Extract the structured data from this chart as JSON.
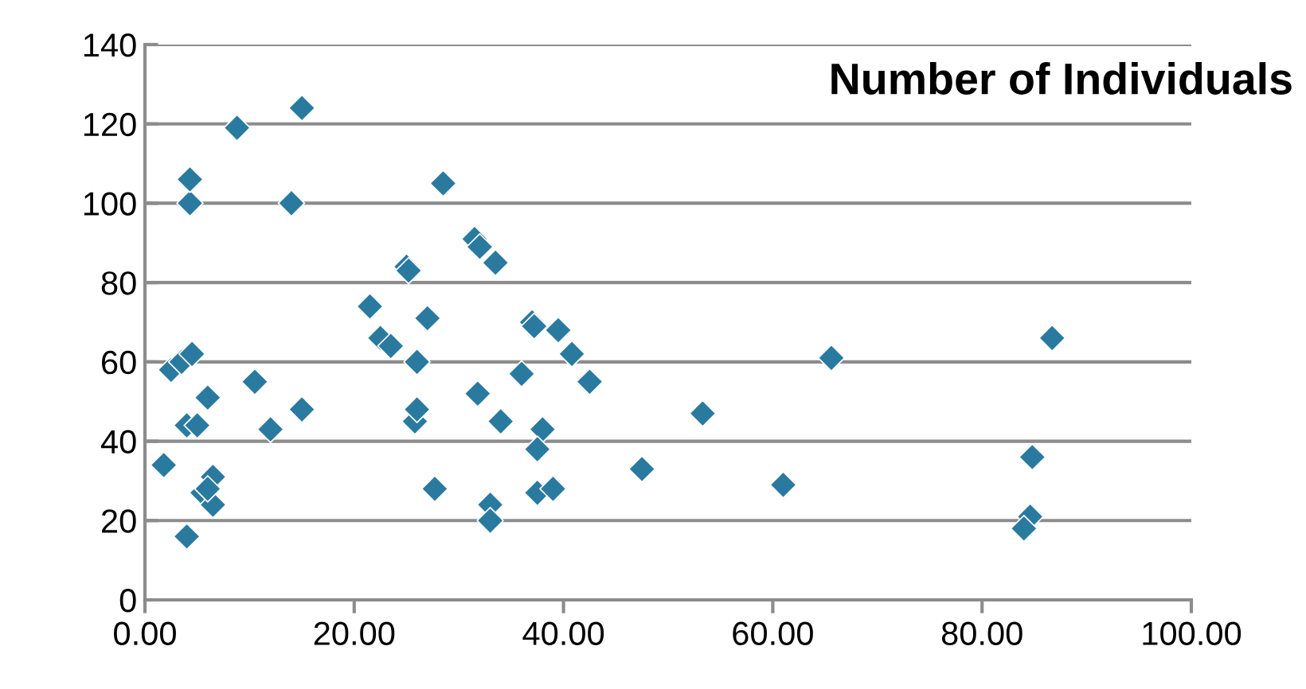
{
  "chart_data": {
    "type": "scatter",
    "title": "Number of Individuals",
    "x": [
      1.8,
      2.5,
      3.5,
      4.5,
      4,
      5,
      4,
      4.3,
      4.3,
      5.5,
      6.5,
      6,
      6.5,
      6,
      8.8,
      10.5,
      12,
      14,
      15,
      15,
      21.5,
      22.5,
      23.5,
      25,
      25.2,
      26,
      25.8,
      26,
      27,
      27.7,
      28.5,
      31.5,
      32,
      33.5,
      31.8,
      33,
      33,
      34,
      36,
      37,
      37.2,
      39.5,
      40.8,
      42.5,
      38,
      37.5,
      37.5,
      39,
      47.5,
      53.3,
      61,
      65.6,
      86.7,
      84.8,
      84.6,
      84
    ],
    "values": [
      34,
      58,
      60,
      62,
      44,
      44,
      16,
      100,
      106,
      27,
      31,
      51,
      24,
      28,
      119,
      55,
      43,
      100,
      124,
      48,
      74,
      66,
      64,
      84,
      83,
      60,
      45,
      48,
      71,
      28,
      105,
      91,
      89,
      85,
      52,
      24,
      20,
      45,
      57,
      70,
      69,
      68,
      62,
      55,
      43,
      38,
      27,
      28,
      33,
      47,
      29,
      61,
      66,
      36,
      21,
      18
    ],
    "color": "#2a7aa0",
    "marker": "diamond",
    "grid": "y",
    "xlim": [
      0,
      100
    ],
    "xticks": [
      {
        "value": 0,
        "label": "0.00"
      },
      {
        "value": 20,
        "label": "20.00"
      },
      {
        "value": 40,
        "label": "40.00"
      },
      {
        "value": 60,
        "label": "60.00"
      },
      {
        "value": 80,
        "label": "80.00"
      },
      {
        "value": 100,
        "label": "100.00"
      }
    ],
    "ylim": [
      0,
      140
    ],
    "yticks": [
      0,
      20,
      40,
      60,
      80,
      100,
      120,
      140
    ]
  }
}
